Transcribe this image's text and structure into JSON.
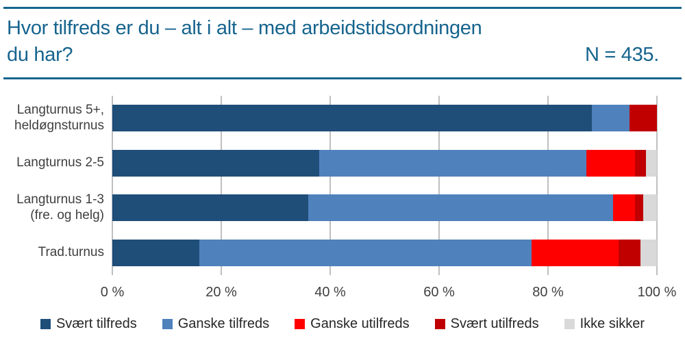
{
  "title": {
    "line1": "Hvor tilfreds er du – alt i alt – med arbeidstidsordningen",
    "line2": "du har?",
    "n_label": "N = 435."
  },
  "colors": {
    "title_blue": "#16648E",
    "rule_blue": "#16648E",
    "gridline": "#BFBFBF",
    "axis_text": "#404040",
    "category_text": "#3F3F3F"
  },
  "chart_data": {
    "type": "bar",
    "orientation": "horizontal",
    "stacked": true,
    "unit": "percent",
    "xlim": [
      0,
      100
    ],
    "grid": true,
    "legend_position": "bottom",
    "categories": [
      "Langturnus 5+, heldøgnsturnus",
      "Langturnus 2-5",
      "Langturnus 1-3 (fre. og helg)",
      "Trad.turnus"
    ],
    "category_label_lines": [
      [
        "Langturnus 5+,",
        "heldøgnsturnus"
      ],
      [
        "Langturnus 2-5"
      ],
      [
        "Langturnus 1-3",
        "(fre. og helg)"
      ],
      [
        "Trad.turnus"
      ]
    ],
    "series": [
      {
        "name": "Svært tilfreds",
        "color": "#1F4E79",
        "values": [
          88,
          38,
          36,
          16
        ]
      },
      {
        "name": "Ganske tilfreds",
        "color": "#4F81BD",
        "values": [
          7,
          49,
          56,
          61
        ]
      },
      {
        "name": "Ganske utilfreds",
        "color": "#FF0000",
        "values": [
          0,
          9,
          4,
          16
        ]
      },
      {
        "name": "Svært utilfreds",
        "color": "#C00000",
        "values": [
          5,
          2,
          1.5,
          4
        ]
      },
      {
        "name": "Ikke sikker",
        "color": "#D9D9D9",
        "values": [
          0,
          2,
          2.5,
          3
        ]
      }
    ],
    "x_ticks": [
      "0 %",
      "20 %",
      "40 %",
      "60 %",
      "80 %",
      "100 %"
    ]
  }
}
